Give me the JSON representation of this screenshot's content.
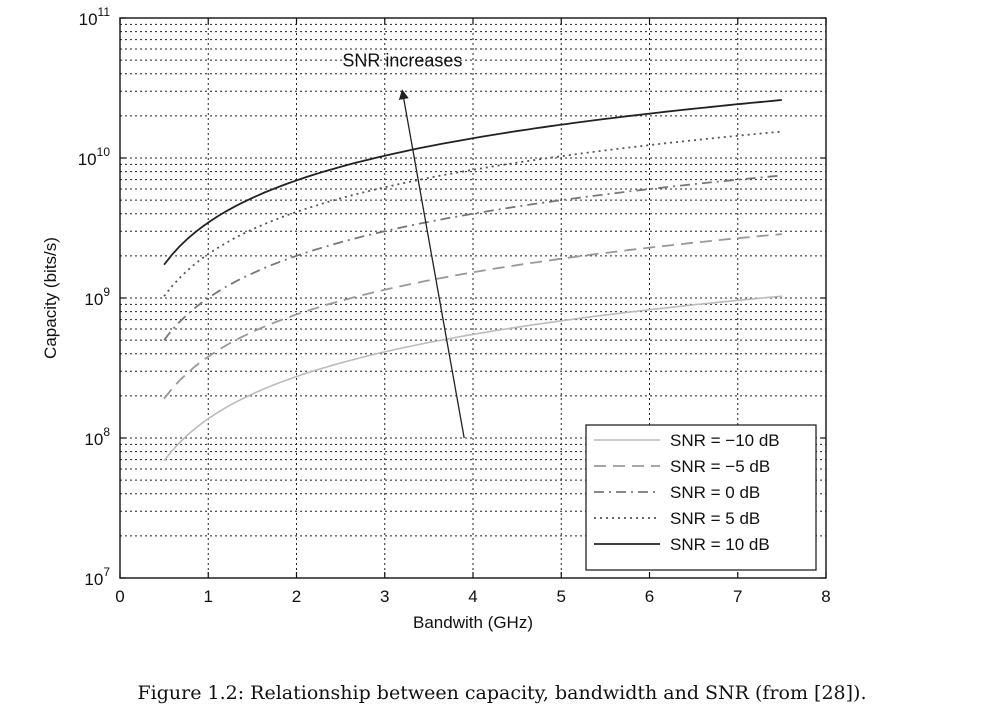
{
  "caption": "Figure 1.2: Relationship between capacity, bandwidth and SNR (from [28]).",
  "chart_data": {
    "type": "line",
    "title": "",
    "xlabel": "Bandwith (GHz)",
    "ylabel": "Capacity (bits/s)",
    "xlim": [
      0,
      8
    ],
    "ylim": [
      10000000,
      100000000000
    ],
    "yscale": "log",
    "grid": true,
    "legend_position": "bottom-right",
    "x_ticks": [
      "0",
      "1",
      "2",
      "3",
      "4",
      "5",
      "6",
      "7",
      "8"
    ],
    "y_ticks": [
      {
        "base": "10",
        "exp": "7",
        "value": 10000000
      },
      {
        "base": "10",
        "exp": "8",
        "value": 100000000
      },
      {
        "base": "10",
        "exp": "9",
        "value": 1000000000
      },
      {
        "base": "10",
        "exp": "10",
        "value": 10000000000
      },
      {
        "base": "10",
        "exp": "11",
        "value": 100000000000
      }
    ],
    "x": [
      0.5,
      1,
      1.5,
      2,
      2.5,
      3,
      3.5,
      4,
      4.5,
      5,
      5.5,
      6,
      6.5,
      7,
      7.5
    ],
    "series": [
      {
        "name": "SNR = −10 dB",
        "style": "solid-light",
        "color": "#bbbbbb",
        "values": [
          68700000,
          137500000,
          206200000,
          275000000,
          343700000,
          412500000,
          481200000,
          550000000,
          618700000,
          687500000,
          756200000,
          825000000,
          893700000,
          962500000,
          1031200000
        ]
      },
      {
        "name": "SNR = −5 dB",
        "style": "dashed",
        "color": "#999999",
        "values": [
          190800000,
          381600000,
          572300000,
          763100000,
          953900000,
          1144700000,
          1335500000,
          1526200000,
          1717000000,
          1907800000,
          2098600000,
          2289400000,
          2480100000,
          2670900000,
          2861700000
        ]
      },
      {
        "name": "SNR = 0 dB",
        "style": "dashdot",
        "color": "#777777",
        "values": [
          500000000,
          1000000000,
          1500000000,
          2000000000,
          2500000000,
          3000000000,
          3500000000,
          4000000000,
          4500000000,
          5000000000,
          5500000000,
          6000000000,
          6500000000,
          7000000000,
          7500000000
        ]
      },
      {
        "name": "SNR = 5 dB",
        "style": "dotted",
        "color": "#555555",
        "values": [
          1030000000,
          2060000000,
          3090000000,
          4120000000,
          5150000000,
          6180000000,
          7210000000,
          8240000000,
          9270000000,
          10300000000,
          11330000000,
          12360000000,
          13390000000,
          14420000000,
          15450000000
        ]
      },
      {
        "name": "SNR = 10 dB",
        "style": "solid",
        "color": "#222222",
        "values": [
          1730000000,
          3460000000,
          5190000000,
          6920000000,
          8650000000,
          10380000000,
          12110000000,
          13840000000,
          15570000000,
          17300000000,
          19030000000,
          20760000000,
          22490000000,
          24220000000,
          25950000000
        ]
      }
    ],
    "annotations": [
      {
        "text": "SNR increases",
        "arrow_from": [
          3.9,
          100000000
        ],
        "arrow_to": [
          3.2,
          30000000000
        ],
        "label_at": [
          3.2,
          45000000000
        ]
      }
    ]
  }
}
